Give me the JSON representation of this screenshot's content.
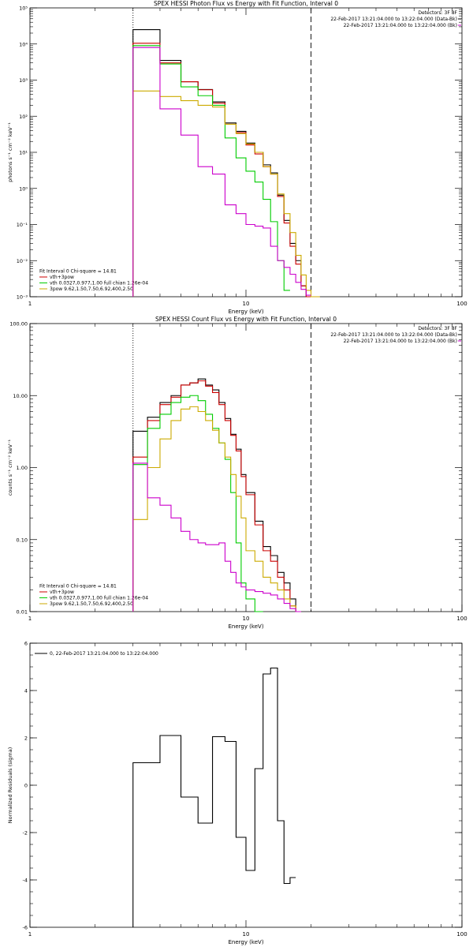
{
  "chart_data": [
    {
      "type": "line",
      "title": "SPEX HESSI Photon Flux vs Energy with Fit Function, Interval 0",
      "xlabel": "Energy (keV)",
      "ylabel": "photons s⁻¹ cm⁻² keV⁻¹",
      "xscale": "log",
      "yscale": "log",
      "xlim": [
        1,
        100
      ],
      "ylim": [
        0.001,
        100000
      ],
      "x_ticks": [
        {
          "v": 1,
          "label": "1"
        },
        {
          "v": 10,
          "label": "10"
        },
        {
          "v": 100,
          "label": "100"
        }
      ],
      "y_ticks": [
        {
          "v": 0.001,
          "label": "10⁻³"
        },
        {
          "v": 0.01,
          "label": "10⁻²"
        },
        {
          "v": 0.1,
          "label": "10⁻¹"
        },
        {
          "v": 1,
          "label": "10⁰"
        },
        {
          "v": 10,
          "label": "10¹"
        },
        {
          "v": 100,
          "label": "10²"
        },
        {
          "v": 1000,
          "label": "10³"
        },
        {
          "v": 10000,
          "label": "10⁴"
        },
        {
          "v": 100000,
          "label": "10⁵"
        }
      ],
      "vlines": [
        {
          "x": 3.0,
          "style": "dotted"
        },
        {
          "x": 20.0,
          "style": "dashed"
        }
      ],
      "header_right": [
        {
          "text": "Detectors: 3F 8F",
          "line": false
        },
        {
          "text": "22-Feb-2017 13:21:04.000 to 13:22:04.000 (Data-Bk)",
          "line": true,
          "color": "#000000"
        },
        {
          "text": "22-Feb-2017 13:21:04.000 to 13:22:04.000 (Bk)",
          "line": true,
          "color": "#cc00cc"
        }
      ],
      "legend_heading": "Fit Interval 0   Chi-square = 14.81",
      "legend": [
        {
          "text": "vth+3pow",
          "color": "#cc0000"
        },
        {
          "text": "vth 0.0327,0.977,1.00  full chian 1.26e-04",
          "color": "#00cc00"
        },
        {
          "text": "3pow 9.62,1.50,7.50,6.92,400,2.50",
          "color": "#ccaa00"
        }
      ],
      "bin_edges": [
        3,
        4,
        5,
        6,
        7,
        8,
        9,
        10,
        11,
        12,
        13,
        14,
        15,
        16,
        17,
        18,
        19,
        20,
        22
      ],
      "series": [
        {
          "color": "#000000",
          "values": [
            25000,
            3500,
            900,
            550,
            250,
            65,
            38,
            18,
            10,
            4.5,
            2.7,
            0.65,
            0.13,
            0.03,
            0.01,
            0.002,
            0.001,
            null
          ]
        },
        {
          "color": "#cc0000",
          "values": [
            10500,
            3000,
            900,
            540,
            230,
            60,
            35,
            16,
            9,
            4,
            2.5,
            0.6,
            0.11,
            0.025,
            0.008,
            0.002,
            0.001,
            null
          ]
        },
        {
          "color": "#00cc00",
          "values": [
            9000,
            2800,
            650,
            370,
            200,
            25,
            7,
            3,
            1.5,
            0.5,
            0.12,
            0.01,
            0.0015,
            null,
            null,
            null,
            null,
            null
          ]
        },
        {
          "color": "#ccaa00",
          "values": [
            500,
            350,
            270,
            200,
            180,
            60,
            33,
            17,
            10,
            4,
            2.5,
            0.7,
            0.2,
            0.06,
            0.014,
            0.004,
            0.0015,
            0.001
          ]
        },
        {
          "color": "#cc00cc",
          "values": [
            8000,
            160,
            30,
            4,
            2.5,
            0.35,
            0.2,
            0.1,
            0.09,
            0.08,
            0.025,
            0.01,
            0.0065,
            0.0042,
            0.0025,
            0.0016,
            0.0011,
            null
          ]
        }
      ]
    },
    {
      "type": "line",
      "title": "SPEX HESSI Count Flux vs Energy with Fit Function, Interval 0",
      "xlabel": "Energy (keV)",
      "ylabel": "counts s⁻¹ cm⁻² keV⁻¹",
      "xscale": "log",
      "yscale": "log",
      "xlim": [
        1,
        100
      ],
      "ylim": [
        0.01,
        100
      ],
      "x_ticks": [
        {
          "v": 1,
          "label": "1"
        },
        {
          "v": 10,
          "label": "10"
        },
        {
          "v": 100,
          "label": "100"
        }
      ],
      "y_ticks": [
        {
          "v": 0.01,
          "label": "0.01"
        },
        {
          "v": 0.1,
          "label": "0.10"
        },
        {
          "v": 1,
          "label": "1.00"
        },
        {
          "v": 10,
          "label": "10.00"
        },
        {
          "v": 100,
          "label": "100.00"
        }
      ],
      "vlines": [
        {
          "x": 3.0,
          "style": "dotted"
        },
        {
          "x": 20.0,
          "style": "dashed"
        }
      ],
      "header_right": [
        {
          "text": "Detectors: 3F 8F",
          "line": false
        },
        {
          "text": "22-Feb-2017 13:21:04.000 to 13:22:04.000 (Data-Bk)",
          "line": true,
          "color": "#000000"
        },
        {
          "text": "22-Feb-2017 13:21:04.000 to 13:22:04.000 (Bk)",
          "line": true,
          "color": "#cc00cc"
        }
      ],
      "legend_heading": "Fit Interval 0   Chi-square = 14.81",
      "legend": [
        {
          "text": "vth+3pow",
          "color": "#cc0000"
        },
        {
          "text": "vth 0.0327,0.977,1.00  full chian 1.26e-04",
          "color": "#00cc00"
        },
        {
          "text": "3pow 9.62,1.50,7.50,6.92,400,2.50",
          "color": "#ccaa00"
        }
      ],
      "bin_edges": [
        3,
        3.5,
        4,
        4.5,
        5,
        5.5,
        6,
        6.5,
        7,
        7.5,
        8,
        8.5,
        9,
        9.5,
        10,
        11,
        12,
        13,
        14,
        15,
        16,
        17,
        18,
        19,
        20,
        21,
        22
      ],
      "series": [
        {
          "color": "#000000",
          "values": [
            3.2,
            5.0,
            8.0,
            10,
            14,
            15,
            17,
            14,
            12,
            8,
            4.8,
            2.9,
            1.8,
            0.8,
            0.45,
            0.18,
            0.08,
            0.06,
            0.035,
            0.025,
            0.015,
            0.01,
            null,
            null,
            null,
            null
          ]
        },
        {
          "color": "#cc0000",
          "values": [
            1.4,
            4.5,
            7.5,
            9.5,
            14,
            15,
            16,
            13.5,
            11,
            7.5,
            4.5,
            2.8,
            1.7,
            0.75,
            0.42,
            0.16,
            0.07,
            0.05,
            0.03,
            0.02,
            0.012,
            0.01,
            null,
            null,
            null,
            null
          ]
        },
        {
          "color": "#00cc00",
          "values": [
            1.1,
            3.5,
            5.5,
            8,
            9.5,
            10,
            8.5,
            5.5,
            3.5,
            2.2,
            1.3,
            0.45,
            0.09,
            0.025,
            0.015,
            0.01,
            null,
            null,
            null,
            null,
            null,
            null,
            null,
            null,
            null,
            null
          ]
        },
        {
          "color": "#ccaa00",
          "values": [
            0.19,
            1.0,
            2.5,
            4.5,
            6.5,
            7,
            6,
            4.5,
            3.3,
            2.2,
            1.4,
            0.8,
            0.4,
            0.2,
            0.07,
            0.05,
            0.03,
            0.025,
            0.02,
            0.015,
            0.012,
            0.01,
            null,
            null,
            null,
            null
          ]
        },
        {
          "color": "#cc00cc",
          "values": [
            1.15,
            0.38,
            0.3,
            0.2,
            0.13,
            0.1,
            0.09,
            0.085,
            0.085,
            0.09,
            0.05,
            0.035,
            0.025,
            0.022,
            0.02,
            0.019,
            0.018,
            0.017,
            0.015,
            0.013,
            0.011,
            0.01,
            null,
            null,
            null,
            null
          ]
        }
      ]
    },
    {
      "type": "line",
      "title": "",
      "xlabel": "Energy (keV)",
      "ylabel": "Normalized Residuals (sigma)",
      "xscale": "log",
      "yscale": "linear",
      "xlim": [
        1,
        100
      ],
      "ylim": [
        -6,
        6
      ],
      "x_ticks": [
        {
          "v": 1,
          "label": "1"
        },
        {
          "v": 10,
          "label": "10"
        },
        {
          "v": 100,
          "label": "100"
        }
      ],
      "y_ticks": [
        {
          "v": -6,
          "label": "-6"
        },
        {
          "v": -4,
          "label": "-4"
        },
        {
          "v": -2,
          "label": "-2"
        },
        {
          "v": 0,
          "label": "0"
        },
        {
          "v": 2,
          "label": "2"
        },
        {
          "v": 4,
          "label": "4"
        },
        {
          "v": 6,
          "label": "6"
        }
      ],
      "vlines": [],
      "header_right": [],
      "legend_heading": "",
      "legend_top_left": [
        {
          "text": "0, 22-Feb-2017 13:21:04.000 to 13:22:04.000",
          "color": "#000000"
        }
      ],
      "legend": [],
      "bin_edges": [
        3,
        4,
        5,
        6,
        7,
        8,
        9,
        10,
        11,
        12,
        13,
        14,
        15,
        16,
        17,
        18,
        19,
        20
      ],
      "series": [
        {
          "color": "#000000",
          "values": [
            0.95,
            2.1,
            -0.5,
            -1.6,
            2.05,
            1.85,
            -2.2,
            -3.6,
            0.7,
            4.7,
            4.95,
            -1.5,
            -4.15,
            -3.9,
            null,
            null,
            null
          ]
        }
      ]
    }
  ]
}
